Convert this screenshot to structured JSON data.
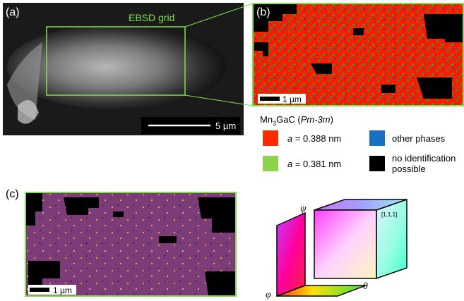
{
  "panels": {
    "a": {
      "label": "(a)",
      "grid_label": "EBSD grid",
      "scale_bar": "5 µm"
    },
    "b": {
      "label": "(b)",
      "scale_bar": "1 µm"
    },
    "c": {
      "label": "(c)",
      "scale_bar": "1 µm"
    }
  },
  "legend": {
    "title": [
      "Mn",
      "3",
      "GaC (",
      "Pm-3m",
      ")"
    ],
    "items": [
      {
        "symbol": "a",
        "text": " = 0.388 nm",
        "color": "#ff2a00"
      },
      {
        "symbol": "a",
        "text": " = 0.381 nm",
        "color": "#8cd24c"
      },
      {
        "lines": [
          "other phases"
        ],
        "color": "#1a70c0"
      },
      {
        "lines": [
          "no identification",
          "possible"
        ],
        "color": "#000000"
      }
    ]
  },
  "cube": {
    "psi": "ψ",
    "phi": "φ",
    "theta": "θ",
    "corner": "[1,1,1]"
  }
}
